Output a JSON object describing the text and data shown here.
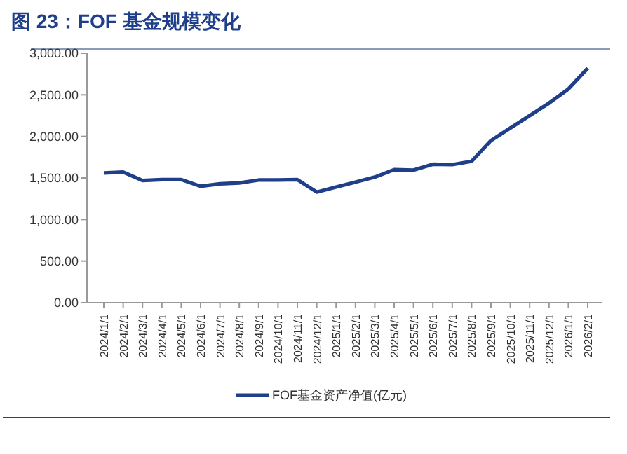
{
  "chart_data": {
    "type": "line",
    "title": "图 23：FOF 基金规模变化",
    "categories": [
      "2024/1/1",
      "2024/2/1",
      "2024/3/1",
      "2024/4/1",
      "2024/5/1",
      "2024/6/1",
      "2024/7/1",
      "2024/8/1",
      "2024/9/1",
      "2024/10/1",
      "2024/11/1",
      "2024/12/1",
      "2025/1/1",
      "2025/2/1",
      "2025/3/1",
      "2025/4/1",
      "2025/5/1",
      "2025/6/1",
      "2025/7/1",
      "2025/8/1",
      "2025/9/1",
      "2025/10/1",
      "2025/11/1",
      "2025/12/1",
      "2026/1/1",
      "2026/2/1"
    ],
    "series": [
      {
        "name": "FOF基金资产净值(亿元)",
        "color": "#1f3f8a",
        "values": [
          1560,
          1570,
          1470,
          1480,
          1480,
          1400,
          1430,
          1440,
          1475,
          1475,
          1480,
          1330,
          1390,
          1450,
          1510,
          1600,
          1595,
          1665,
          1660,
          1700,
          1950,
          2100,
          2250,
          2400,
          2570,
          2820
        ]
      }
    ],
    "ylim": [
      0,
      3000
    ],
    "yticks": [
      {
        "value": 0,
        "label": "0.00"
      },
      {
        "value": 500,
        "label": "500.00"
      },
      {
        "value": 1000,
        "label": "1,000.00"
      },
      {
        "value": 1500,
        "label": "1,500.00"
      },
      {
        "value": 2000,
        "label": "2,000.00"
      },
      {
        "value": 2500,
        "label": "2,500.00"
      },
      {
        "value": 3000,
        "label": "3,000.00"
      }
    ],
    "grid": false,
    "legend": "bottom",
    "marker": "none",
    "line_style": "solid"
  }
}
